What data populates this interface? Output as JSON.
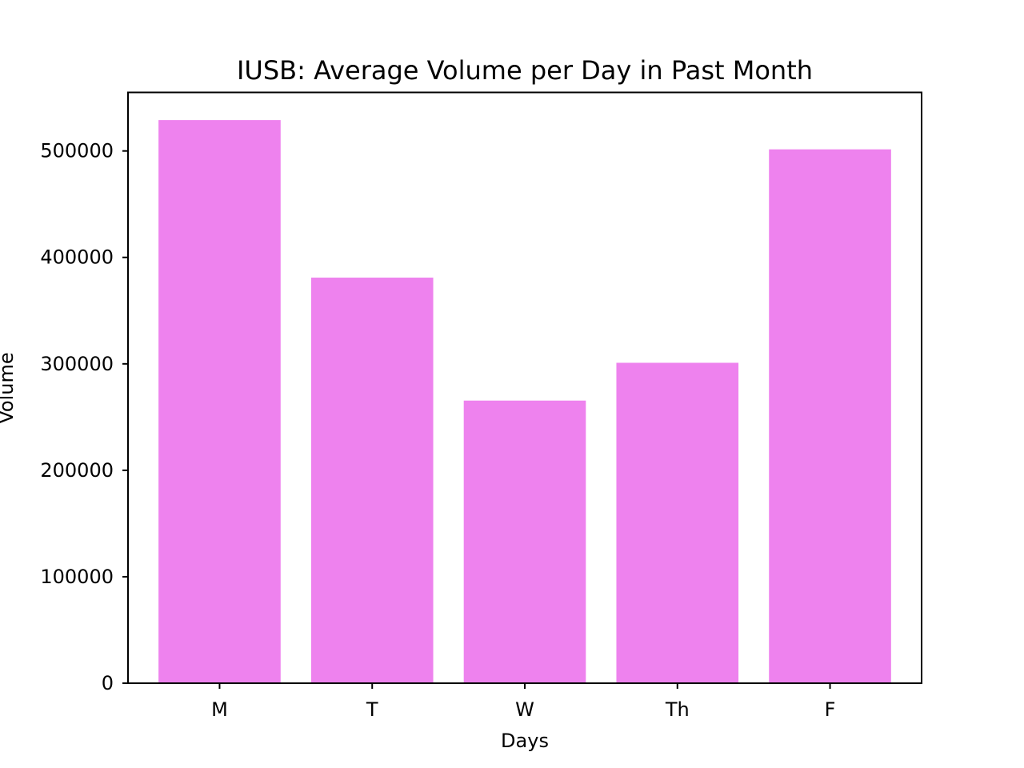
{
  "chart_data": {
    "type": "bar",
    "title": "IUSB: Average Volume per Day in Past Month",
    "xlabel": "Days",
    "ylabel": "Volume",
    "categories": [
      "M",
      "T",
      "W",
      "Th",
      "F"
    ],
    "values": [
      529000,
      381000,
      265500,
      301000,
      501500
    ],
    "ylim": [
      0,
      555000
    ],
    "yticks": [
      0,
      100000,
      200000,
      300000,
      400000,
      500000
    ],
    "ytick_labels": [
      "0",
      "100000",
      "200000",
      "300000",
      "400000",
      "500000"
    ],
    "bar_color": "#EE82EE",
    "grid": false,
    "legend": false
  }
}
